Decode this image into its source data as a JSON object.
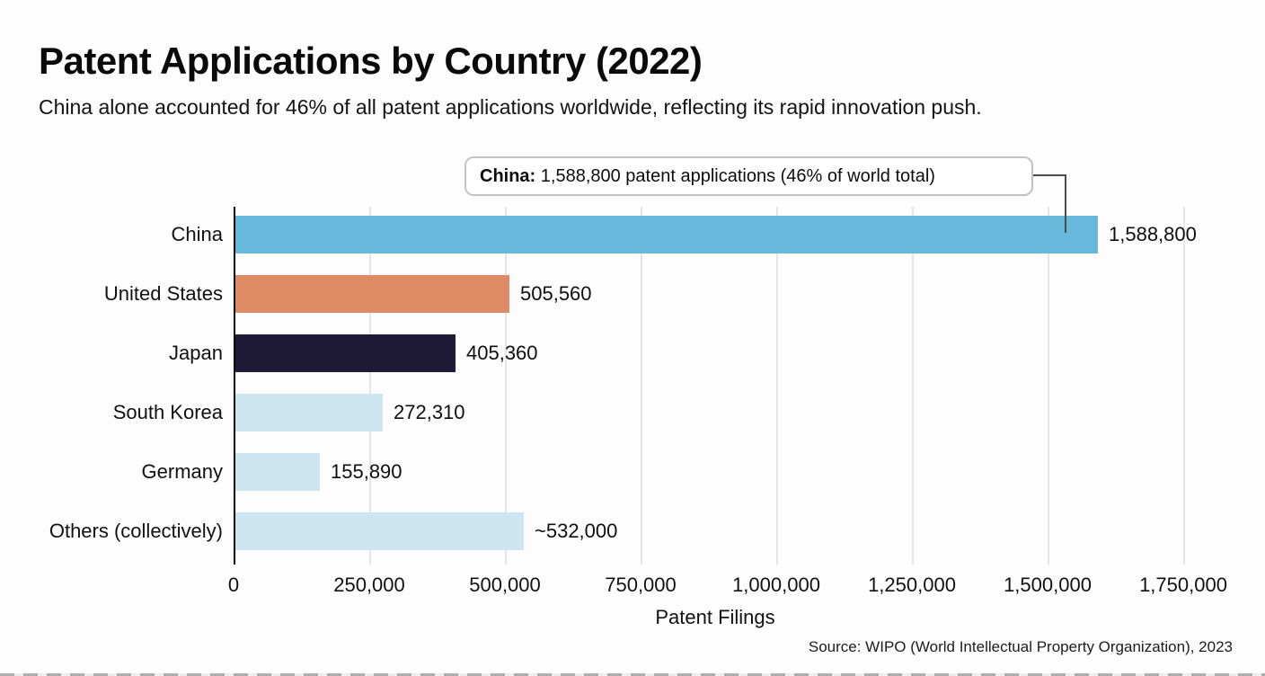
{
  "title": "Patent Applications by Country (2022)",
  "subtitle": "China alone accounted for 46% of all patent applications worldwide, reflecting its rapid innovation push.",
  "annotation": {
    "bold": "China:",
    "text": " 1,588,800 patent applications (46% of world total)"
  },
  "source": "Source: WIPO (World Intellectual Property Organization), 2023",
  "chart_data": {
    "type": "bar",
    "orientation": "horizontal",
    "categories": [
      "China",
      "United States",
      "Japan",
      "South Korea",
      "Germany",
      "Others (collectively)"
    ],
    "values": [
      1588800,
      505560,
      405360,
      272310,
      155890,
      532000
    ],
    "value_labels": [
      "1,588,800",
      "505,560",
      "405,360",
      "272,310",
      "155,890",
      "~532,000"
    ],
    "bar_colors": [
      "#68b8dc",
      "#de8a64",
      "#1e1a38",
      "#cde4f1",
      "#cde4f1",
      "#cde4f1"
    ],
    "xlabel": "Patent Filings",
    "ylabel": "",
    "xlim": [
      0,
      1790000
    ],
    "tick_values": [
      0,
      250000,
      500000,
      750000,
      1000000,
      1250000,
      1500000,
      1750000
    ],
    "tick_labels": [
      "0",
      "250,000",
      "500,000",
      "750,000",
      "1,000,000",
      "1,250,000",
      "1,500,000",
      "1,750,000"
    ],
    "grid": "vertical-lines",
    "legend": "none",
    "annotation_target": "China"
  },
  "colors": {
    "background": "#fdfdfd",
    "axis": "#000000",
    "gridline": "#e5e5e5",
    "annotation_border": "#c2c2c2",
    "connector": "#4d4d4d",
    "text": "#111111"
  }
}
